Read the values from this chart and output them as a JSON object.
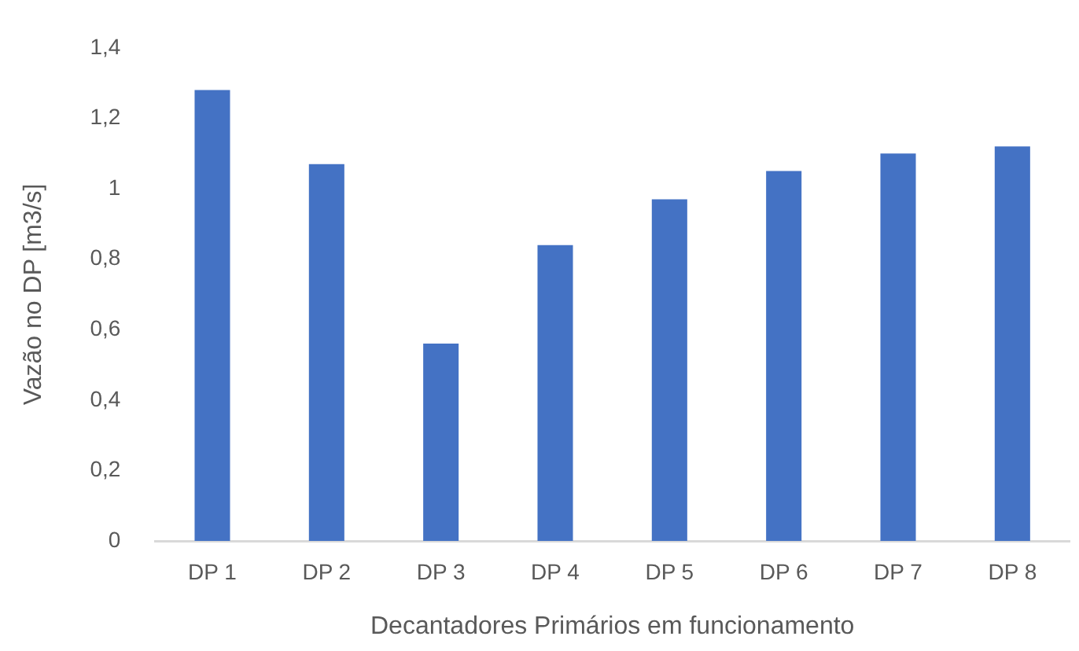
{
  "chart_data": {
    "type": "bar",
    "xlabel": "Decantadores Primários em funcionamento",
    "ylabel": "Vazão no DP [m3/s]",
    "categories": [
      "DP 1",
      "DP 2",
      "DP 3",
      "DP 4",
      "DP 5",
      "DP 6",
      "DP 7",
      "DP 8"
    ],
    "values": [
      1.28,
      1.07,
      0.56,
      0.84,
      0.97,
      1.05,
      1.1,
      1.12
    ],
    "color": "#4472c4",
    "ylim": [
      0,
      1.4
    ],
    "yticks": [
      0,
      {
        "value": 0.2,
        "label": "0,2"
      },
      {
        "value": 0.4,
        "label": "0,4"
      },
      {
        "value": 0.6,
        "label": "0,6"
      },
      {
        "value": 0.8,
        "label": "0,8"
      },
      1,
      {
        "value": 1.2,
        "label": "1,2"
      },
      {
        "value": 1.4,
        "label": "1,4"
      }
    ],
    "grid": false,
    "legend": false
  }
}
